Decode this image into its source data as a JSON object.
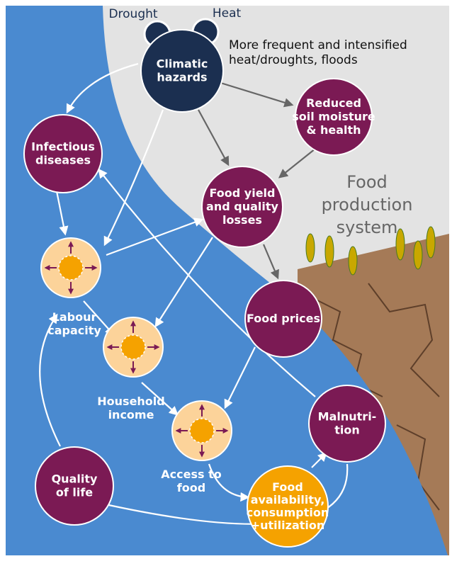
{
  "header": {
    "top_left": "Drought",
    "top_right": "Heat",
    "note": [
      "More frequent and intensified",
      "heat/droughts, floods"
    ]
  },
  "region_label": [
    "Food",
    "production",
    "system"
  ],
  "nodes": [
    {
      "label": [
        "Climatic",
        "hazards"
      ]
    },
    {
      "label": [
        "Reduced",
        "soil moisture",
        "& health"
      ]
    },
    {
      "label": [
        "Infectious",
        "diseases"
      ]
    },
    {
      "label": [
        "Food yield",
        "and quality",
        "losses"
      ]
    },
    {
      "label": [
        "Food prices"
      ]
    },
    {
      "label": [
        "Malnutri-",
        "tion"
      ]
    },
    {
      "label": [
        "Quality",
        "of life"
      ]
    },
    {
      "label": [
        "Food",
        "availability,",
        "consumption",
        "+utilization"
      ]
    },
    {
      "label": [
        "Labour",
        "capacity"
      ]
    },
    {
      "label": [
        "Household",
        "income"
      ]
    },
    {
      "label": [
        "Access to",
        "food"
      ]
    }
  ]
}
